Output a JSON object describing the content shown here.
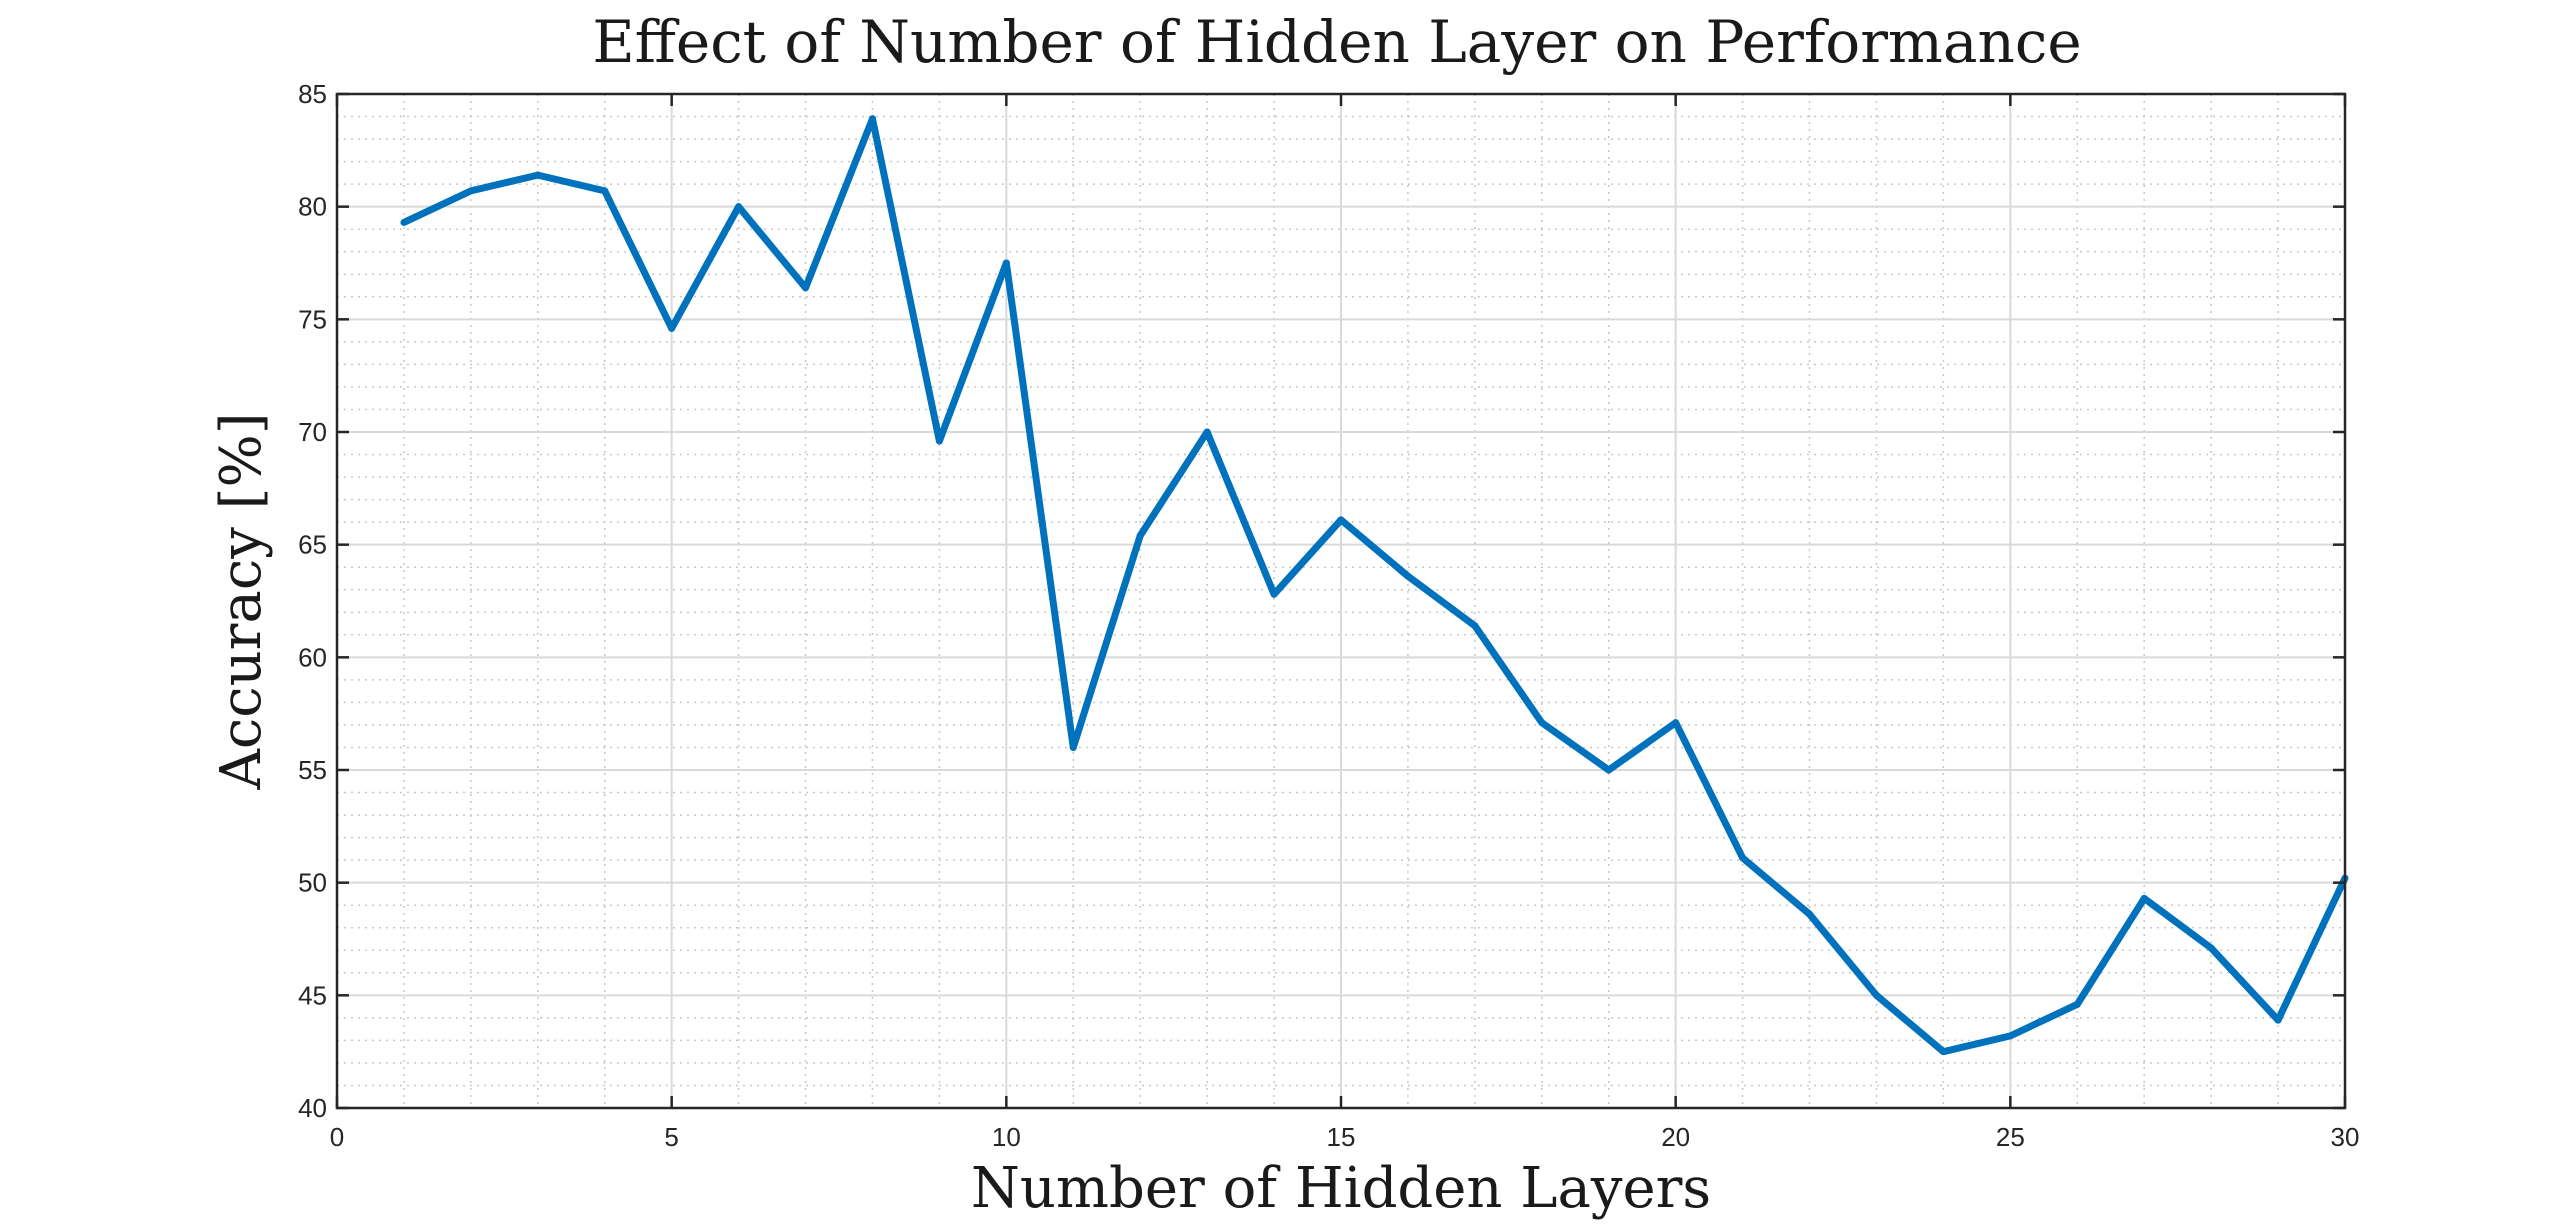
{
  "chart_data": {
    "type": "line",
    "title": "Effect of Number of Hidden Layer on Performance",
    "xlabel": "Number of Hidden Layers",
    "ylabel": "Accuracy [%]",
    "xlim": [
      0,
      30
    ],
    "ylim": [
      40,
      85
    ],
    "xticks": [
      0,
      5,
      10,
      15,
      20,
      25,
      30
    ],
    "yticks": [
      40,
      45,
      50,
      55,
      60,
      65,
      70,
      75,
      80,
      85
    ],
    "grid": true,
    "minor_grid": true,
    "line_color": "#0072BD",
    "x": [
      1,
      2,
      3,
      4,
      5,
      6,
      7,
      8,
      9,
      10,
      11,
      12,
      13,
      14,
      15,
      16,
      17,
      18,
      19,
      20,
      21,
      22,
      23,
      24,
      25,
      26,
      27,
      28,
      29,
      30
    ],
    "series": [
      {
        "values": [
          79.3,
          80.7,
          81.4,
          80.7,
          74.6,
          80.0,
          76.4,
          83.9,
          69.6,
          77.5,
          56.0,
          65.4,
          70.0,
          62.8,
          66.1,
          63.6,
          61.4,
          57.1,
          55.0,
          57.1,
          51.1,
          48.6,
          45.0,
          42.5,
          43.2,
          44.6,
          49.3,
          47.1,
          43.9,
          50.2
        ]
      }
    ]
  }
}
